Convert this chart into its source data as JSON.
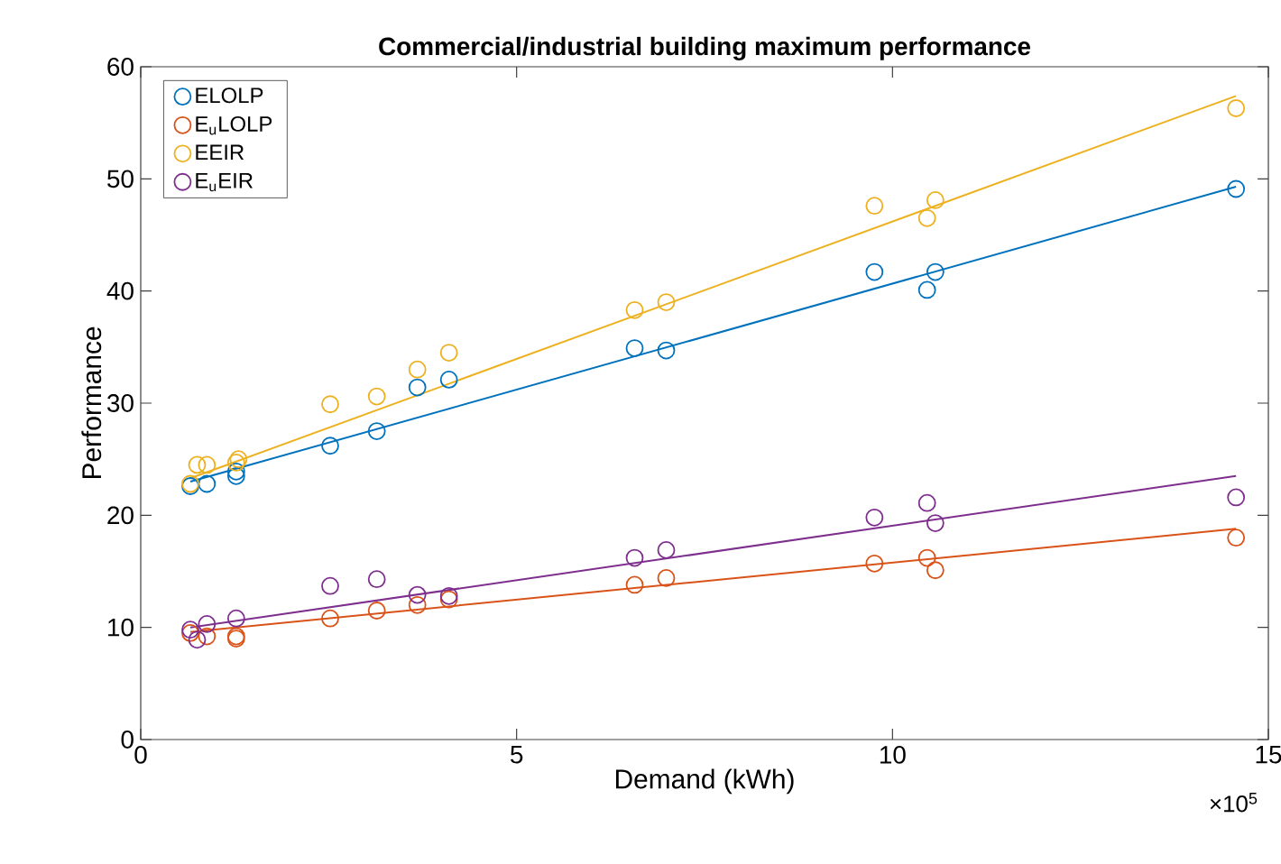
{
  "chart_data": {
    "type": "scatter",
    "title": "Commercial/industrial building maximum performance",
    "xlabel": "Demand (kWh)",
    "ylabel": "Performance",
    "xlim": [
      0,
      15
    ],
    "xticks": [
      0,
      5,
      10,
      15
    ],
    "ylim": [
      0,
      60
    ],
    "yticks": [
      0,
      10,
      20,
      30,
      40,
      50,
      60
    ],
    "annotations": [
      "×10$^{5}$"
    ],
    "legend": "top left",
    "marker": "circle",
    "grid": false,
    "series": [
      {
        "name": "ELOLP",
        "color": "#0072bd",
        "x": [
          0.66,
          0.88,
          1.27,
          1.27,
          2.52,
          3.14,
          3.68,
          4.1,
          6.57,
          6.99,
          9.76,
          10.46,
          10.57,
          14.57
        ],
        "values": [
          22.6,
          22.8,
          23.5,
          23.9,
          26.2,
          27.5,
          31.4,
          32.1,
          34.9,
          34.7,
          41.7,
          40.1,
          41.7,
          49.1
        ]
      },
      {
        "name": "E$_{u}$LOLP",
        "color": "#d95319",
        "x": [
          0.66,
          0.88,
          1.27,
          1.27,
          2.52,
          3.14,
          3.68,
          4.1,
          6.57,
          6.99,
          9.76,
          10.46,
          10.57,
          14.57
        ],
        "values": [
          9.5,
          9.2,
          9.2,
          9.0,
          10.8,
          11.5,
          12.0,
          12.5,
          13.8,
          14.4,
          15.7,
          16.2,
          15.1,
          18.0
        ]
      },
      {
        "name": "EEIR",
        "color": "#edb120",
        "x": [
          0.66,
          0.75,
          0.88,
          1.27,
          1.3,
          2.52,
          3.14,
          3.68,
          4.1,
          6.57,
          6.99,
          9.76,
          10.46,
          10.57,
          14.57
        ],
        "values": [
          22.8,
          24.5,
          24.5,
          24.7,
          25.0,
          29.9,
          30.6,
          33.0,
          34.5,
          38.3,
          39.0,
          47.6,
          46.5,
          48.1,
          56.3
        ]
      },
      {
        "name": "E$_{u}$EIR",
        "color": "#7e2f8e",
        "x": [
          0.66,
          0.75,
          0.88,
          1.27,
          2.52,
          3.14,
          3.68,
          4.1,
          6.57,
          6.99,
          9.76,
          10.46,
          10.57,
          14.57
        ],
        "values": [
          9.8,
          8.9,
          10.3,
          10.8,
          13.7,
          14.3,
          12.9,
          12.8,
          16.2,
          16.9,
          19.8,
          21.1,
          19.3,
          21.6
        ]
      },
      {
        "type": "line",
        "marker": "none",
        "color": "#0072bd",
        "x": [
          0.66,
          14.57
        ],
        "values": [
          23.0,
          49.3
        ]
      },
      {
        "type": "line",
        "marker": "none",
        "color": "#d95319",
        "x": [
          0.66,
          14.57
        ],
        "values": [
          9.6,
          18.8
        ]
      },
      {
        "type": "line",
        "marker": "none",
        "color": "#edb120",
        "x": [
          0.66,
          14.57
        ],
        "values": [
          23.3,
          57.4
        ]
      },
      {
        "type": "line",
        "marker": "none",
        "color": "#7e2f8e",
        "x": [
          0.66,
          14.57
        ],
        "values": [
          10.0,
          23.5
        ]
      }
    ]
  }
}
